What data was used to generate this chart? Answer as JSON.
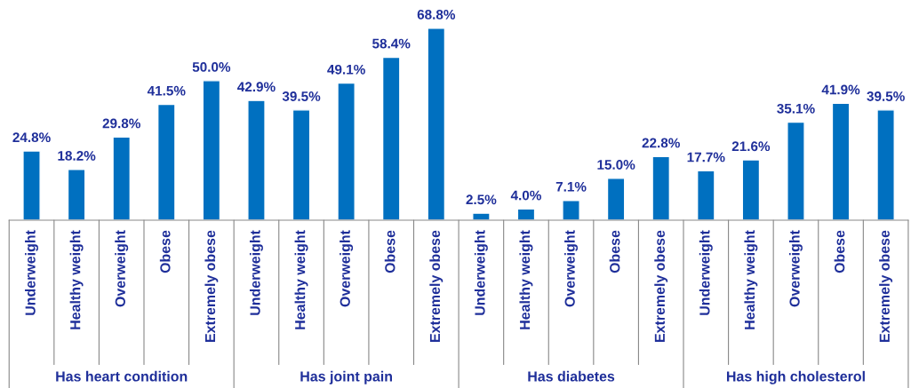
{
  "chart_data": {
    "type": "bar",
    "categories": [
      "Underweight",
      "Healthy weight",
      "Overweight",
      "Obese",
      "Extremely obese",
      "Underweight",
      "Healthy weight",
      "Overweight",
      "Obese",
      "Extremely obese",
      "Underweight",
      "Healthy weight",
      "Overweight",
      "Obese",
      "Extremely obese",
      "Underweight",
      "Healthy weight",
      "Overweight",
      "Obese",
      "Extremely obese"
    ],
    "values": [
      24.8,
      18.2,
      29.8,
      41.5,
      50.0,
      42.9,
      39.5,
      49.1,
      58.4,
      68.8,
      2.5,
      4.0,
      7.1,
      15.0,
      22.8,
      17.7,
      21.6,
      35.1,
      41.9,
      39.5
    ],
    "value_labels": [
      "24.8%",
      "18.2%",
      "29.8%",
      "41.5%",
      "50.0%",
      "42.9%",
      "39.5%",
      "49.1%",
      "58.4%",
      "68.8%",
      "2.5%",
      "4.0%",
      "7.1%",
      "15.0%",
      "22.8%",
      "17.7%",
      "21.6%",
      "35.1%",
      "41.9%",
      "39.5%"
    ],
    "color": "#0070c0",
    "annotations": [
      "Has heart condition",
      "Has joint pain",
      "Has diabetes",
      "Has high cholesterol"
    ],
    "grid": false,
    "legend": false
  }
}
